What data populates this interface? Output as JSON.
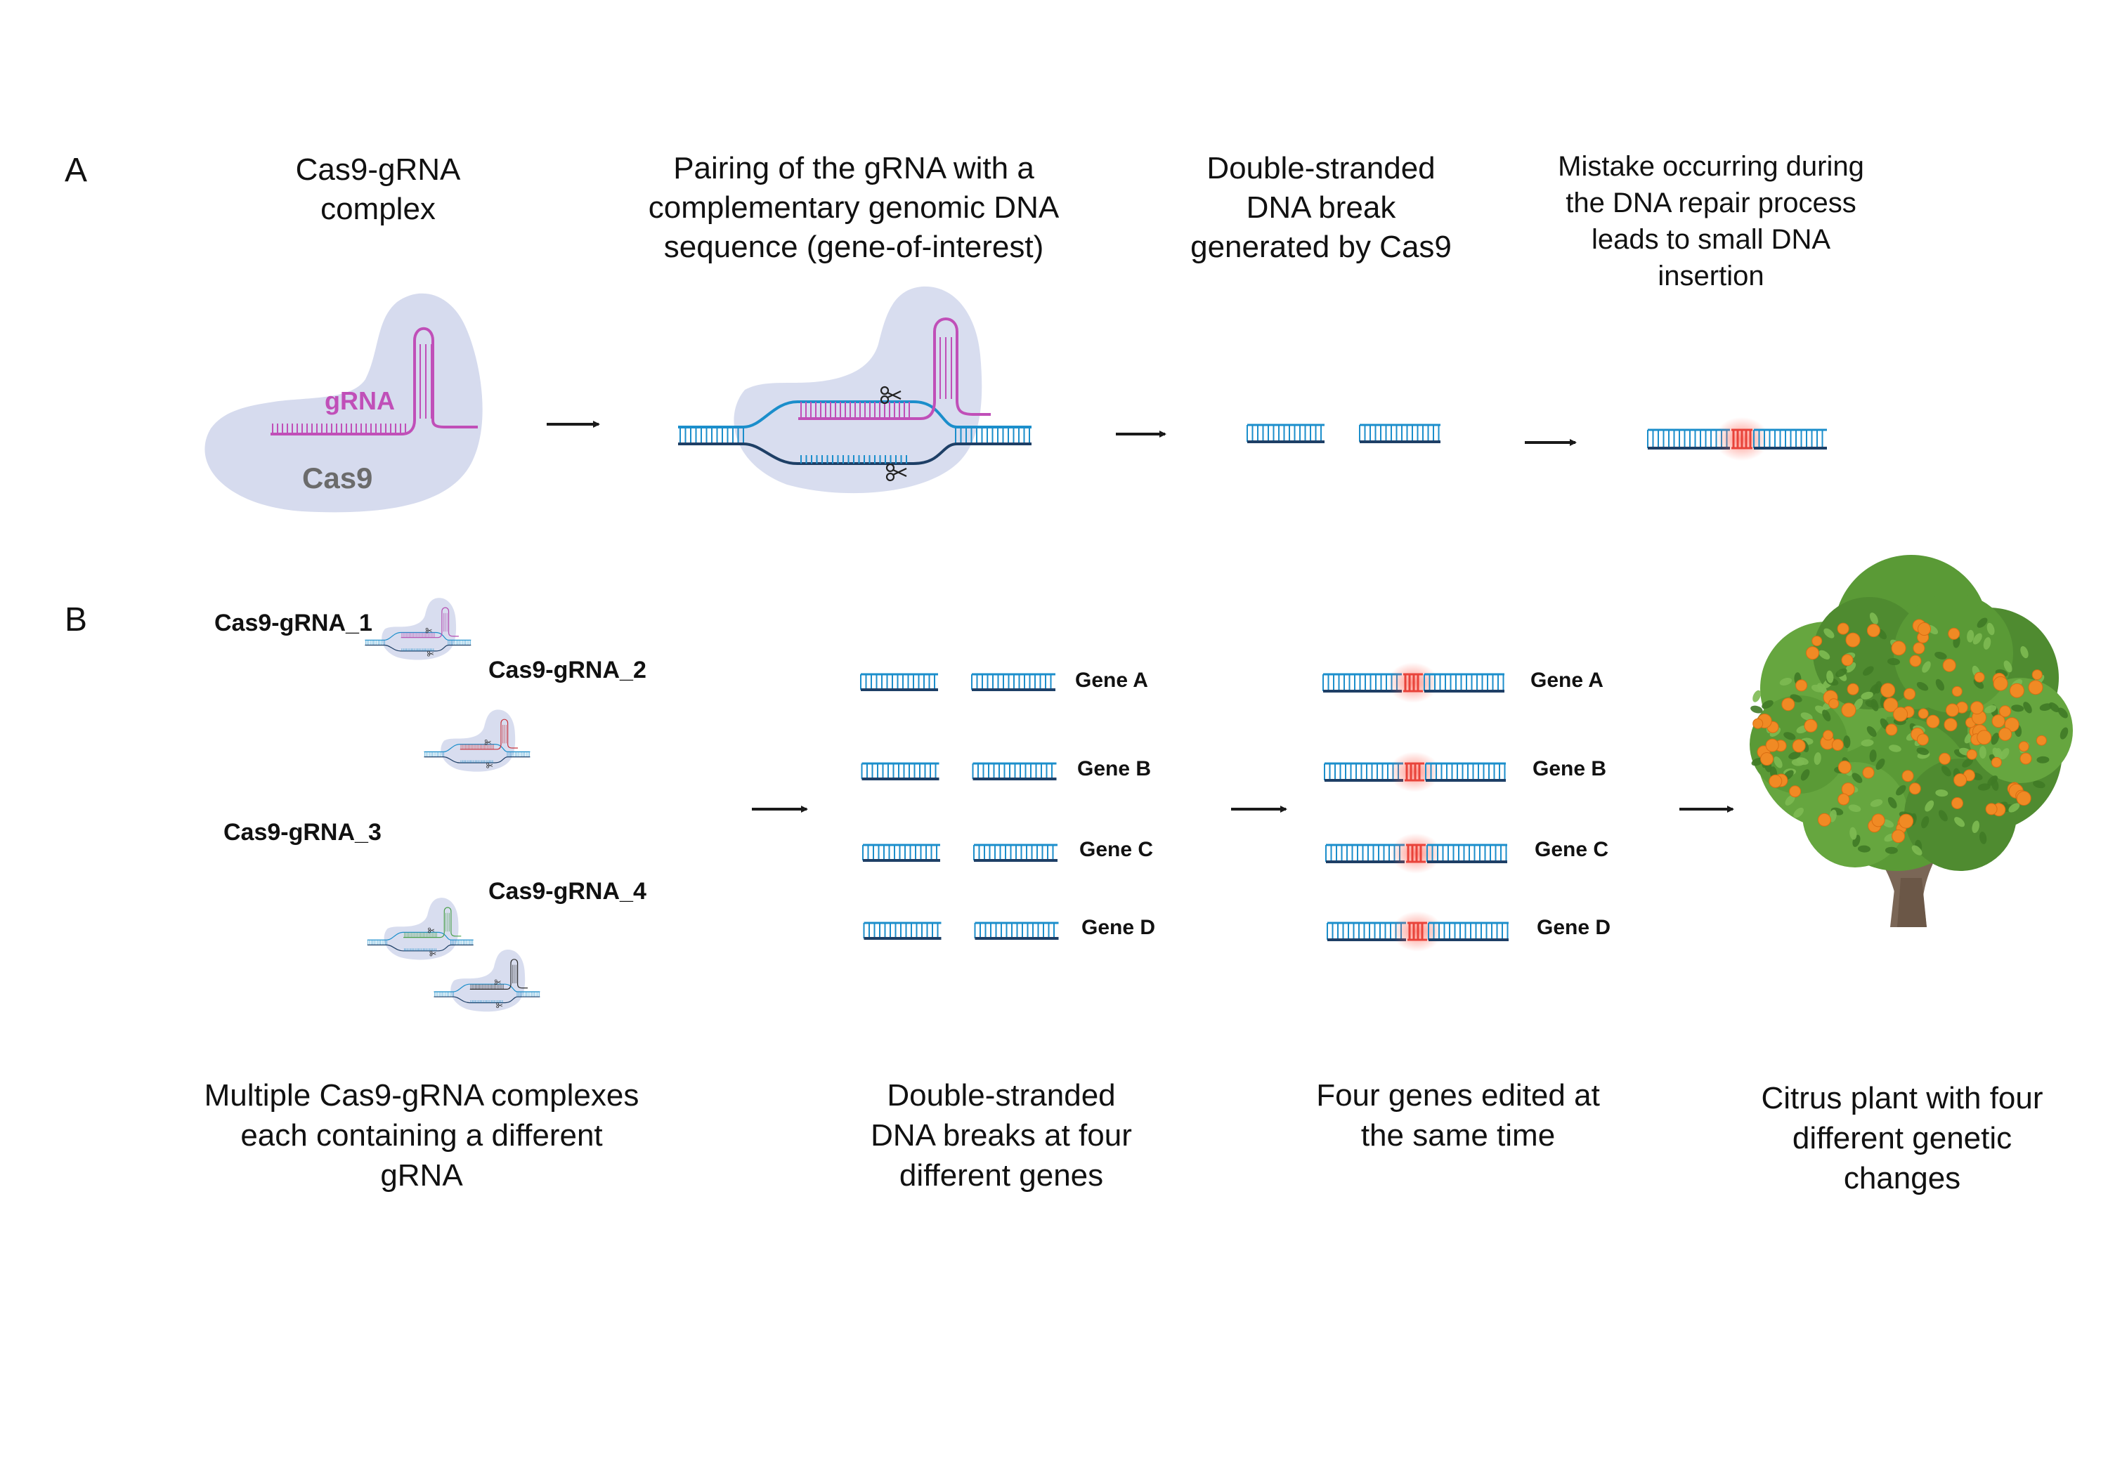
{
  "panel_a": {
    "label": "A",
    "step1": {
      "title": [
        "Cas9-gRNA",
        "complex"
      ],
      "grna_label": "gRNA",
      "cas9_label": "Cas9"
    },
    "step2": {
      "title": [
        "Pairing of the gRNA with a",
        "complementary genomic DNA",
        "sequence (gene-of-interest)"
      ]
    },
    "step3": {
      "title": [
        "Double-stranded",
        "DNA break",
        "generated by Cas9"
      ]
    },
    "step4": {
      "title": [
        "Mistake occurring during",
        "the DNA repair process",
        "leads to small DNA",
        "insertion"
      ]
    }
  },
  "panel_b": {
    "label": "B",
    "complexes": [
      {
        "label": "Cas9-gRNA_1",
        "grna_color": "#b44bb0"
      },
      {
        "label": "Cas9-gRNA_2",
        "grna_color": "#c8333c"
      },
      {
        "label": "Cas9-gRNA_3",
        "grna_color": "#49a04a"
      },
      {
        "label": "Cas9-gRNA_4",
        "grna_color": "#2a2a2a"
      }
    ],
    "genes": [
      "Gene A",
      "Gene B",
      "Gene C",
      "Gene D"
    ],
    "captions": {
      "complexes": [
        "Multiple Cas9-gRNA complexes",
        "each containing a different",
        "gRNA"
      ],
      "breaks": [
        "Double-stranded",
        "DNA breaks at four",
        "different genes"
      ],
      "edited": [
        "Four genes edited at",
        "the same time"
      ],
      "plant": [
        "Citrus plant with four",
        "different genetic",
        "changes"
      ]
    }
  },
  "colors": {
    "cas9_fill": "#d6dbee",
    "dna_top": "#1b8ecb",
    "dna_bottom": "#1e3f66",
    "grna": "#c04fb8",
    "insertion": "#e8433a",
    "cas9_text": "#6b6b6b",
    "foliage": "#5f9e3a",
    "fruit": "#f08a24",
    "trunk": "#7a6656"
  }
}
